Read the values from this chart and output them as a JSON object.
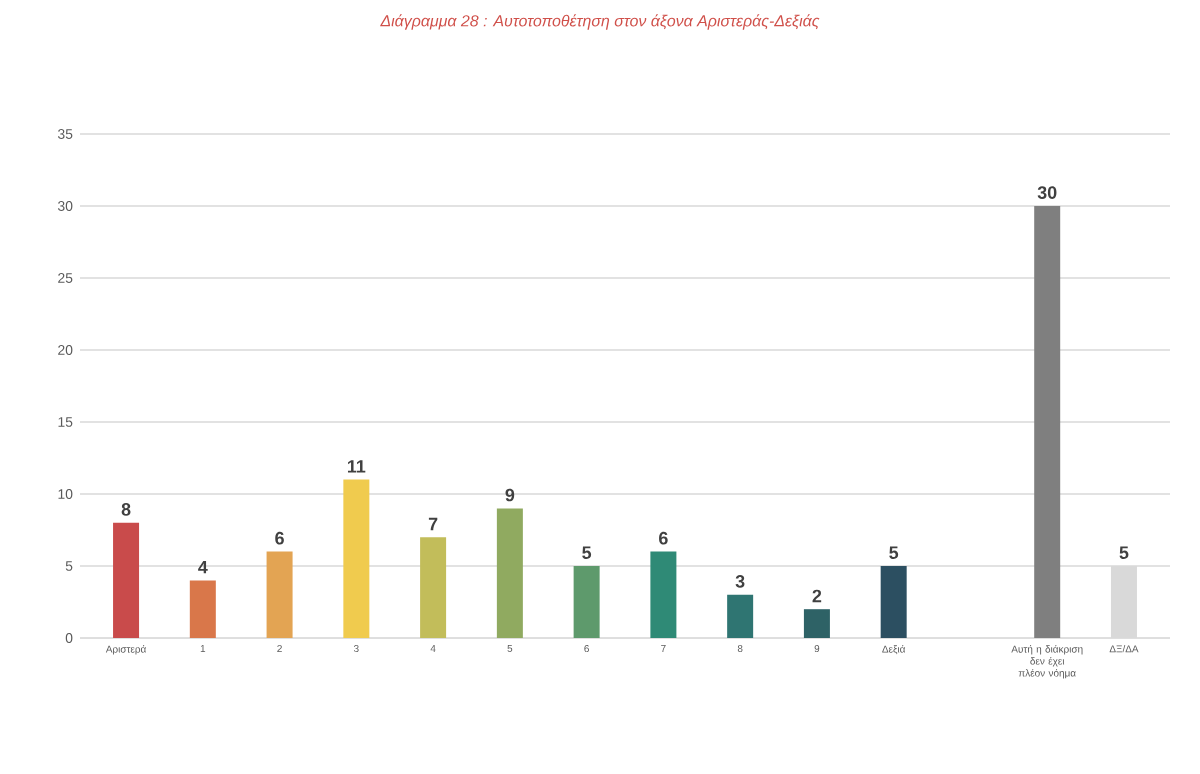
{
  "chart_data": {
    "type": "bar",
    "title": "Διάγραμμα 28 : Αυτοτοποθέτηση στον άξονα Αριστεράς-Δεξιάς",
    "categories": [
      "Αριστερά",
      "1",
      "2",
      "3",
      "4",
      "5",
      "6",
      "7",
      "8",
      "9",
      "Δεξιά",
      null,
      "Αυτή η διάκριση δεν έχει πλέον νόημα",
      "ΔΞ/ΔΑ"
    ],
    "values": [
      8,
      4,
      6,
      11,
      7,
      9,
      5,
      6,
      3,
      2,
      5,
      null,
      30,
      5
    ],
    "colors": [
      "#c94b4b",
      "#d9774a",
      "#e3a453",
      "#f0cb4e",
      "#c2bd5a",
      "#90aa60",
      "#5e9a6c",
      "#2f8a76",
      "#2f7572",
      "#2e6266",
      "#2c4f61",
      "#ffffff",
      "#7f7f7f",
      "#d9d9d9"
    ],
    "ylim": [
      0,
      35
    ],
    "yticks": [
      0,
      5,
      10,
      15,
      20,
      25,
      30,
      35
    ],
    "grid": "y",
    "data_labels": true
  }
}
